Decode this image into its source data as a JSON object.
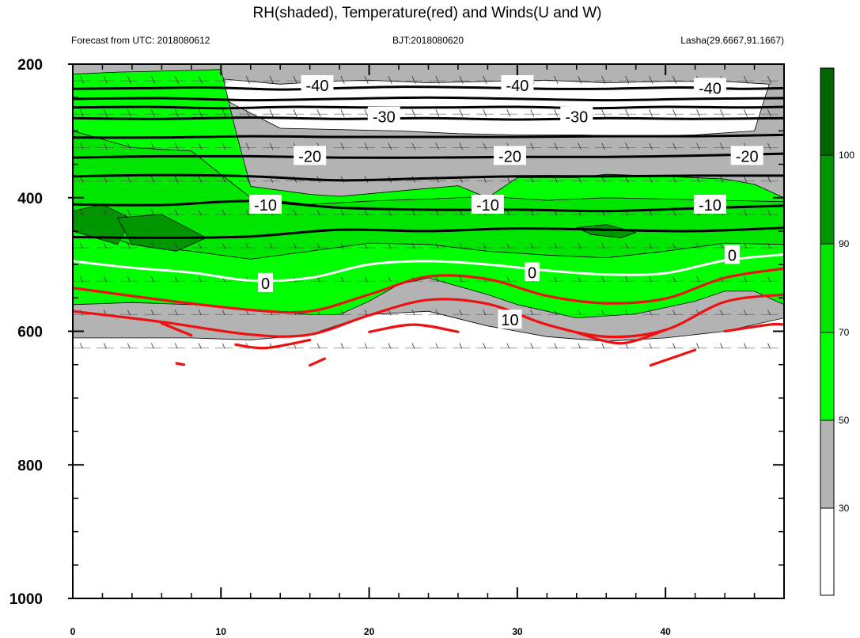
{
  "chart_data": {
    "type": "heatmap",
    "title": "RH(shaded), Temperature(red) and Winds(U and W)",
    "subtitle_left": "Forecast from UTC: 2018080612",
    "subtitle_center": "BJT:2018080620",
    "subtitle_right": "Lasha(29.6667,91.1667)",
    "x_ticks": [
      "0",
      "10",
      "20",
      "30",
      "40"
    ],
    "y_ticks": [
      "200",
      "400",
      "600",
      "800",
      "1000"
    ],
    "xlim": [
      0,
      48
    ],
    "ylim": [
      200,
      1000
    ],
    "colorbar": {
      "ticks": [
        "30",
        "50",
        "70",
        "90",
        "100"
      ],
      "colors": [
        "#ffffff",
        "#b3b3b3",
        "#00ff00",
        "#00e600",
        "#00c800",
        "#009600",
        "#006400"
      ]
    },
    "contour_labels": [
      {
        "text": "-40",
        "x": 16.5,
        "y": 232
      },
      {
        "text": "-40",
        "x": 30,
        "y": 232
      },
      {
        "text": "-40",
        "x": 43,
        "y": 236
      },
      {
        "text": "-30",
        "x": 21,
        "y": 279
      },
      {
        "text": "-30",
        "x": 34,
        "y": 279
      },
      {
        "text": "-20",
        "x": 16,
        "y": 338
      },
      {
        "text": "-20",
        "x": 29.5,
        "y": 338
      },
      {
        "text": "-20",
        "x": 45.5,
        "y": 338
      },
      {
        "text": "-10",
        "x": 13,
        "y": 411
      },
      {
        "text": "-10",
        "x": 28,
        "y": 411
      },
      {
        "text": "-10",
        "x": 43,
        "y": 411
      },
      {
        "text": "0",
        "x": 13,
        "y": 528
      },
      {
        "text": "0",
        "x": 31,
        "y": 512
      },
      {
        "text": "0",
        "x": 44.5,
        "y": 486
      },
      {
        "text": "10",
        "x": 29.5,
        "y": 583
      }
    ],
    "temperature_contours": [
      {
        "level": -40,
        "x": [
          0,
          5,
          9,
          14,
          18,
          22,
          27,
          32,
          36,
          41,
          45,
          48
        ],
        "y": [
          237,
          236,
          235,
          238,
          236,
          234,
          235,
          237,
          237,
          235,
          237,
          236
        ]
      },
      {
        "level": -40,
        "x": [
          0,
          6,
          12,
          18,
          24,
          30,
          36,
          42,
          48
        ],
        "y": [
          252,
          251,
          254,
          252,
          250,
          252,
          254,
          252,
          251
        ]
      },
      {
        "level": -30,
        "x": [
          0,
          5,
          10,
          15,
          20,
          25,
          30,
          35,
          40,
          45,
          48
        ],
        "y": [
          265,
          264,
          266,
          264,
          265,
          265,
          264,
          266,
          264,
          265,
          264
        ]
      },
      {
        "level": -30,
        "x": [
          0,
          6,
          12,
          18,
          24,
          30,
          36,
          42,
          48
        ],
        "y": [
          281,
          282,
          280,
          282,
          281,
          283,
          281,
          282,
          281
        ]
      },
      {
        "level": -30,
        "x": [
          0,
          6,
          12,
          18,
          24,
          30,
          36,
          42,
          48
        ],
        "y": [
          310,
          310,
          308,
          309,
          309,
          309,
          308,
          308,
          306
        ]
      },
      {
        "level": -20,
        "x": [
          0,
          6,
          12,
          18,
          24,
          30,
          36,
          42,
          48
        ],
        "y": [
          340,
          338,
          338,
          340,
          340,
          339,
          339,
          337,
          334
        ]
      },
      {
        "level": -20,
        "x": [
          0,
          6,
          12,
          18,
          24,
          30,
          36,
          42,
          48
        ],
        "y": [
          368,
          366,
          368,
          374,
          371,
          368,
          368,
          367,
          367
        ]
      },
      {
        "level": -10,
        "x": [
          0,
          6,
          12,
          18,
          24,
          30,
          36,
          42,
          48
        ],
        "y": [
          410,
          411,
          405,
          415,
          418,
          418,
          420,
          416,
          412
        ]
      },
      {
        "level": -10,
        "x": [
          0,
          6,
          12,
          18,
          24,
          30,
          36,
          42,
          48
        ],
        "y": [
          459,
          460,
          458,
          448,
          450,
          446,
          448,
          450,
          445
        ]
      }
    ],
    "freezing_line": {
      "level": 0,
      "x": [
        0,
        4,
        8,
        12,
        16,
        20,
        24,
        28,
        32,
        36,
        40,
        44,
        48
      ],
      "y": [
        495,
        505,
        512,
        524,
        520,
        500,
        495,
        500,
        509,
        515,
        513,
        494,
        485
      ]
    },
    "warm_contours": [
      {
        "level": 10,
        "x": [
          0,
          6,
          12,
          16,
          20,
          24,
          28,
          32,
          36,
          40,
          44,
          48
        ],
        "y": [
          535,
          553,
          568,
          570,
          545,
          518,
          522,
          547,
          558,
          551,
          520,
          506
        ]
      },
      {
        "level": 10,
        "x": [
          0,
          6,
          12,
          16,
          20,
          24,
          28,
          32,
          36,
          40,
          44,
          48
        ],
        "y": [
          570,
          586,
          605,
          605,
          576,
          553,
          559,
          590,
          608,
          598,
          556,
          545
        ]
      },
      {
        "level": 10,
        "x": [
          6,
          8
        ],
        "y": [
          588,
          606
        ]
      },
      {
        "level": 10,
        "x": [
          11,
          13,
          16
        ],
        "y": [
          620,
          625,
          613
        ]
      },
      {
        "level": 10,
        "x": [
          20,
          23,
          26
        ],
        "y": [
          601,
          590,
          601
        ]
      },
      {
        "level": 10,
        "x": [
          34,
          37,
          40
        ],
        "y": [
          602,
          618,
          598
        ]
      },
      {
        "level": 10,
        "x": [
          44,
          47,
          48
        ],
        "y": [
          600,
          590,
          590
        ]
      },
      {
        "level": 10,
        "x": [
          7,
          7.5
        ],
        "y": [
          648,
          650
        ]
      },
      {
        "level": 10,
        "x": [
          16,
          17
        ],
        "y": [
          651,
          641
        ]
      },
      {
        "level": 10,
        "x": [
          39,
          42
        ],
        "y": [
          651,
          628
        ]
      }
    ],
    "rh_fields": [
      {
        "rh": 40,
        "x": [
          0,
          6,
          8,
          12,
          16,
          20,
          24,
          28,
          32,
          36,
          40,
          44,
          48,
          48,
          44,
          40,
          36,
          32,
          28,
          24,
          20,
          16,
          12,
          8,
          4,
          0
        ],
        "y": [
          200,
          200,
          200,
          200,
          200,
          200,
          200,
          200,
          200,
          200,
          200,
          200,
          200,
          580,
          600,
          610,
          615,
          608,
          592,
          570,
          575,
          605,
          613,
          610,
          610,
          610
        ]
      },
      {
        "rh": 20,
        "x": [
          8,
          10,
          14,
          17,
          20,
          24,
          28,
          32,
          36,
          40,
          44,
          47,
          46,
          42,
          38,
          34,
          30,
          26,
          22,
          18,
          14,
          11
        ],
        "y": [
          225,
          222,
          230,
          226,
          224,
          228,
          226,
          224,
          228,
          226,
          226,
          230,
          300,
          306,
          308,
          306,
          306,
          304,
          300,
          298,
          296,
          262
        ]
      },
      {
        "rh": 60,
        "x": [
          0,
          3,
          7,
          10,
          11,
          12,
          16,
          18,
          22,
          26,
          28,
          30,
          34,
          36,
          40,
          44,
          46,
          48,
          48,
          46,
          44,
          42,
          38,
          34,
          32,
          30,
          28,
          24,
          22,
          20,
          18,
          16,
          12,
          8,
          4,
          0
        ],
        "y": [
          215,
          212,
          210,
          208,
          300,
          383,
          395,
          398,
          390,
          382,
          400,
          370,
          370,
          365,
          368,
          372,
          380,
          400,
          560,
          540,
          540,
          555,
          574,
          580,
          570,
          560,
          545,
          520,
          530,
          555,
          575,
          575,
          568,
          560,
          557,
          560
        ]
      },
      {
        "rh": 75,
        "x": [
          0,
          4,
          8,
          12,
          16,
          20,
          24,
          28,
          32,
          36,
          40,
          44,
          48,
          48,
          44,
          40,
          36,
          32,
          28,
          24,
          20,
          16,
          12,
          8,
          4,
          0
        ],
        "y": [
          300,
          325,
          330,
          400,
          410,
          405,
          402,
          398,
          404,
          400,
          402,
          404,
          406,
          470,
          468,
          480,
          490,
          486,
          480,
          470,
          468,
          480,
          492,
          480,
          470,
          440
        ]
      },
      {
        "rh": 95,
        "x": [
          0,
          2,
          4,
          3,
          0
        ],
        "y": [
          420,
          410,
          432,
          470,
          450
        ]
      },
      {
        "rh": 95,
        "x": [
          3,
          6,
          9,
          7,
          4
        ],
        "y": [
          430,
          425,
          460,
          480,
          470
        ]
      },
      {
        "rh": 95,
        "x": [
          34,
          36,
          38,
          37,
          35
        ],
        "y": [
          445,
          440,
          452,
          460,
          455
        ]
      }
    ],
    "winds": [
      {
        "level": 225,
        "u": 9,
        "w": 0.3
      },
      {
        "level": 275,
        "u": 8,
        "w": 0.2
      },
      {
        "level": 325,
        "u": 6,
        "w": 0.1
      },
      {
        "level": 375,
        "u": 5,
        "w": 0
      },
      {
        "level": 425,
        "u": 4,
        "w": -0.1
      },
      {
        "level": 475,
        "u": 3,
        "w": 0.1
      },
      {
        "level": 525,
        "u": 3,
        "w": 0.2
      },
      {
        "level": 575,
        "u": 2,
        "w": 0.3
      },
      {
        "level": 625,
        "u": 2,
        "w": 0.2
      }
    ],
    "grid": false,
    "legend": "right"
  }
}
